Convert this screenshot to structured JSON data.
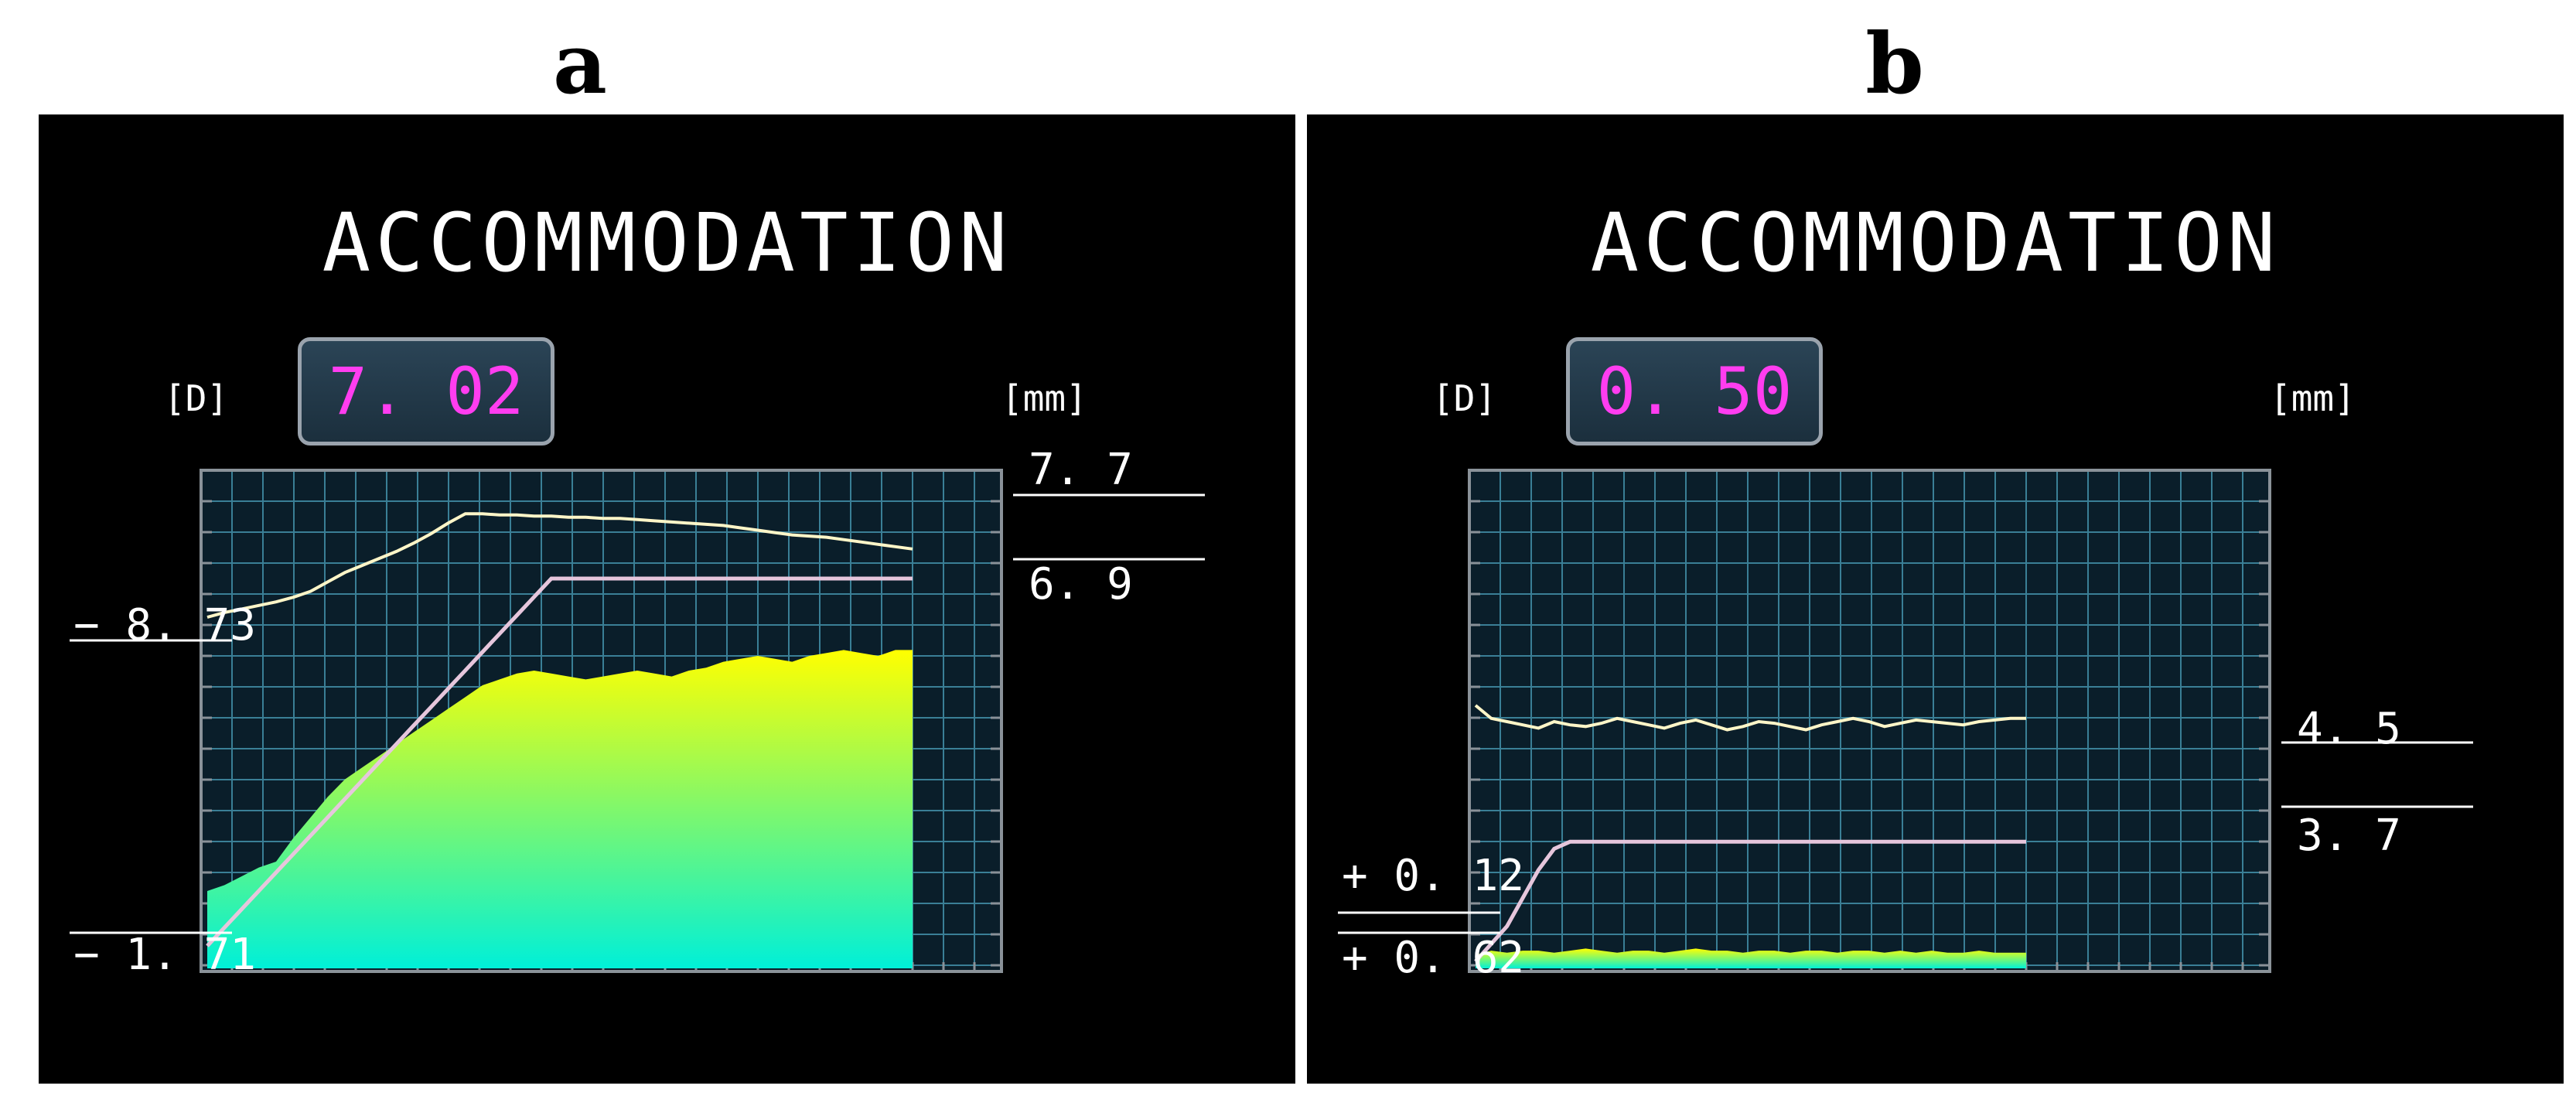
{
  "panels": [
    {
      "label": "a",
      "title": "ACCOMMODATION",
      "readout": "7. 02",
      "unit_left": "[D]",
      "unit_right": "[mm]",
      "left_markers": [
        "− 8. 73",
        "− 1. 71"
      ],
      "right_markers": [
        "7. 7",
        "6. 9"
      ]
    },
    {
      "label": "b",
      "title": "ACCOMMODATION",
      "readout": "0. 50",
      "unit_left": "[D]",
      "unit_right": "[mm]",
      "left_markers": [
        "+ 0. 12",
        "+ 0. 62"
      ],
      "right_markers": [
        "4. 5",
        "3. 7"
      ]
    }
  ],
  "colors": {
    "panel_bg": "#000000",
    "grid": "#3a7f96",
    "plot_bg": "#0a1e2a",
    "pupil_trace": "#fff6c8",
    "accommodation_trace": "#e6c6dc",
    "readout_text": "#ff3df0",
    "fill_top": "#ffff00",
    "fill_bottom": "#00f0d8"
  },
  "chart_data": [
    {
      "type": "area",
      "panel": "a",
      "series": [
        {
          "values": [
            0.0,
            0.04,
            0.07,
            0.1,
            0.13,
            0.17,
            0.22,
            0.3,
            0.38,
            0.44,
            0.5,
            0.56,
            0.63,
            0.71,
            0.8,
            0.88,
            0.88,
            0.87,
            0.87,
            0.86,
            0.86,
            0.85,
            0.85,
            0.84,
            0.84,
            0.83,
            0.82,
            0.81,
            0.8,
            0.79,
            0.78,
            0.76,
            0.74,
            0.72,
            0.7,
            0.69,
            0.68,
            0.66,
            0.64,
            0.62,
            0.6,
            0.58
          ]
        },
        {
          "values": [
            0.0,
            0.05,
            0.1,
            0.15,
            0.2,
            0.25,
            0.3,
            0.35,
            0.4,
            0.45,
            0.5,
            0.55,
            0.6,
            0.65,
            0.7,
            0.75,
            0.8,
            0.85,
            0.9,
            0.95,
            1.0,
            1.0,
            1.0,
            1.0,
            1.0,
            1.0,
            1.0,
            1.0,
            1.0,
            1.0,
            1.0,
            1.0,
            1.0,
            1.0,
            1.0,
            1.0,
            1.0,
            1.0,
            1.0,
            1.0,
            1.0,
            1.0
          ]
        },
        {
          "values": [
            0.2,
            0.22,
            0.25,
            0.28,
            0.3,
            0.38,
            0.45,
            0.52,
            0.58,
            0.62,
            0.66,
            0.7,
            0.74,
            0.78,
            0.82,
            0.86,
            0.9,
            0.92,
            0.94,
            0.95,
            0.94,
            0.93,
            0.92,
            0.93,
            0.94,
            0.95,
            0.94,
            0.93,
            0.95,
            0.96,
            0.98,
            0.99,
            1.0,
            0.99,
            0.98,
            1.0,
            1.01,
            1.02,
            1.01,
            1.0,
            1.02,
            1.02
          ]
        }
      ]
    },
    {
      "type": "area",
      "panel": "b",
      "series": [
        {
          "values": [
            0.6,
            0.52,
            0.5,
            0.48,
            0.46,
            0.5,
            0.48,
            0.47,
            0.49,
            0.52,
            0.5,
            0.48,
            0.46,
            0.49,
            0.51,
            0.48,
            0.45,
            0.47,
            0.5,
            0.49,
            0.47,
            0.45,
            0.48,
            0.5,
            0.52,
            0.5,
            0.47,
            0.49,
            0.51,
            0.5,
            0.49,
            0.48,
            0.5,
            0.51,
            0.52,
            0.52
          ]
        },
        {
          "values": [
            0.0,
            0.05,
            0.1,
            0.18,
            0.26,
            0.32,
            0.34,
            0.34,
            0.34,
            0.34,
            0.34,
            0.34,
            0.34,
            0.34,
            0.34,
            0.34,
            0.34,
            0.34,
            0.34,
            0.34,
            0.34,
            0.34,
            0.34,
            0.34,
            0.34,
            0.34,
            0.34,
            0.34,
            0.34,
            0.34,
            0.34,
            0.34,
            0.34,
            0.34,
            0.34,
            0.34
          ]
        },
        {
          "values": [
            0.05,
            0.07,
            0.06,
            0.07,
            0.07,
            0.06,
            0.07,
            0.08,
            0.07,
            0.06,
            0.07,
            0.07,
            0.06,
            0.07,
            0.08,
            0.07,
            0.07,
            0.06,
            0.07,
            0.07,
            0.06,
            0.07,
            0.07,
            0.06,
            0.07,
            0.07,
            0.06,
            0.07,
            0.06,
            0.07,
            0.06,
            0.06,
            0.07,
            0.06,
            0.06,
            0.06
          ]
        }
      ]
    }
  ]
}
